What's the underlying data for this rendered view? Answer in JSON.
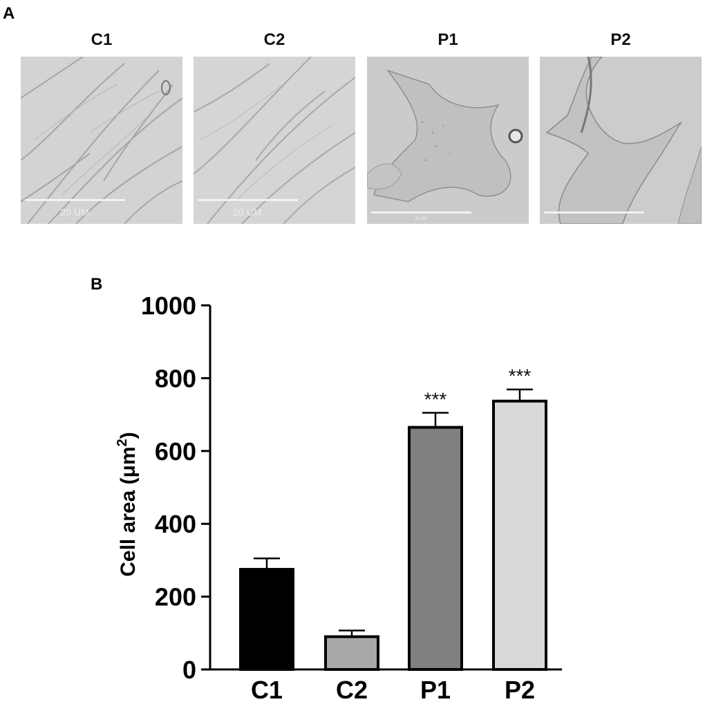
{
  "panel_a": {
    "letter": "A",
    "images": [
      {
        "title": "C1",
        "scale_bar_text": "20 UM",
        "style": "dense-spindle"
      },
      {
        "title": "C2",
        "scale_bar_text": "20 UM",
        "style": "dense-spindle"
      },
      {
        "title": "P1",
        "scale_bar_text": "20 UM",
        "style": "spread-flat"
      },
      {
        "title": "P2",
        "scale_bar_text": "",
        "style": "spread-flat"
      }
    ]
  },
  "panel_b": {
    "letter": "B"
  },
  "chart_data": {
    "type": "bar",
    "categories": [
      "C1",
      "C2",
      "P1",
      "P2"
    ],
    "values": [
      275,
      90,
      665,
      737
    ],
    "errors": [
      30,
      17,
      40,
      32
    ],
    "significance": [
      "",
      "",
      "***",
      "***"
    ],
    "colors": [
      "#000000",
      "#a8a8ab",
      "#808080",
      "#d9d9d9"
    ],
    "ylabel_main": "Cell area (μm",
    "ylabel_sup": "2",
    "ylabel_close": ")",
    "ylim": [
      0,
      1000
    ],
    "yticks": [
      "0",
      "200",
      "400",
      "600",
      "800",
      "1000"
    ],
    "grid": false
  }
}
